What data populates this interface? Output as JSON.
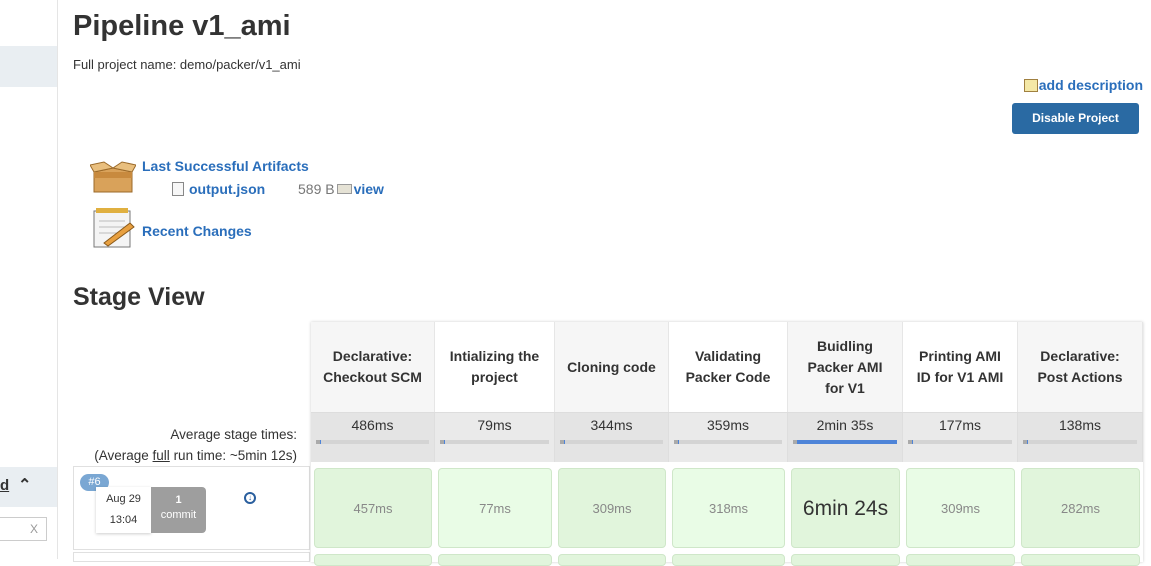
{
  "sidebar": {
    "section_label": "d",
    "filter_clear": "X"
  },
  "header": {
    "title": "Pipeline v1_ami",
    "full_name": "Full project name: demo/packer/v1_ami",
    "add_description": "add description",
    "disable_button": "Disable Project"
  },
  "artifacts": {
    "title": "Last Successful Artifacts",
    "file": "output.json",
    "size": "589 B",
    "view": "view"
  },
  "recent_changes": "Recent Changes",
  "stage_view": {
    "title": "Stage View",
    "avg_label_1": "Average stage times:",
    "avg_label_2a": "(Average ",
    "avg_label_2b": "full",
    "avg_label_2c": " run time: ~5min 12s)",
    "stages": [
      {
        "name": "Declarative: Checkout SCM",
        "avg": "486ms",
        "progress": 0.01,
        "cell": "457ms"
      },
      {
        "name": "Intializing the project",
        "avg": "79ms",
        "progress": 0.005,
        "cell": "77ms"
      },
      {
        "name": "Cloning code",
        "avg": "344ms",
        "progress": 0.01,
        "cell": "309ms"
      },
      {
        "name": "Validating Packer Code",
        "avg": "359ms",
        "progress": 0.01,
        "cell": "318ms"
      },
      {
        "name": "Buidling Packer AMI for V1",
        "avg": "2min 35s",
        "progress": 1.0,
        "cell": "6min 24s"
      },
      {
        "name": "Printing AMI ID for V1 AMI",
        "avg": "177ms",
        "progress": 0.01,
        "cell": "309ms"
      },
      {
        "name": "Declarative: Post Actions",
        "avg": "138ms",
        "progress": 0.01,
        "cell": "282ms"
      }
    ],
    "build": {
      "number": "#6",
      "date": "Aug 29",
      "time": "13:04",
      "commits_count": "1",
      "commits_label": "commit"
    }
  },
  "colors": {
    "link": "#2a6ebb",
    "button": "#2a6aa3",
    "success_cell": "#e1f5dc",
    "progress": "#4e84d8"
  }
}
